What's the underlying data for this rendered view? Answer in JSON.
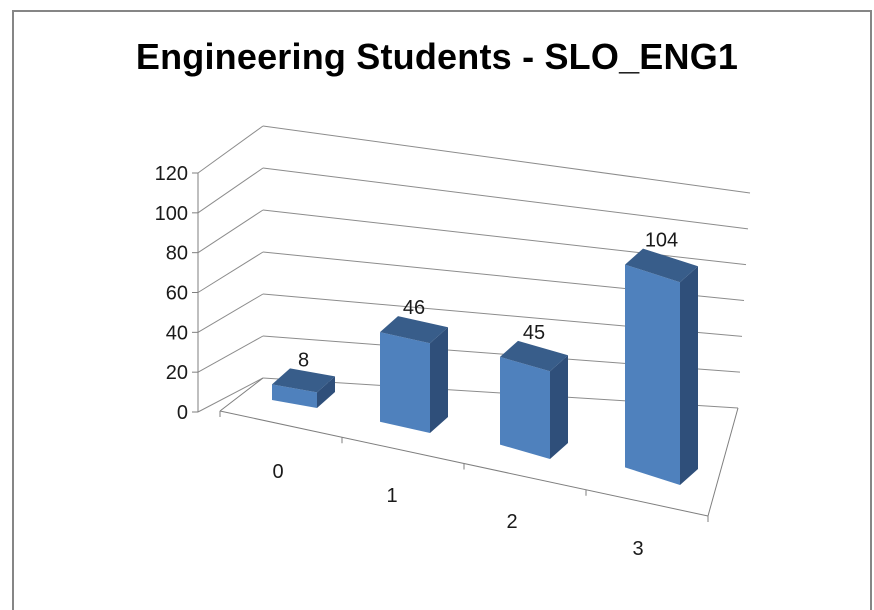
{
  "chart_data": {
    "type": "bar",
    "title": "Engineering Students - SLO_ENG1",
    "xlabel": "",
    "ylabel": "",
    "categories": [
      "0",
      "1",
      "2",
      "3"
    ],
    "values": [
      8,
      46,
      45,
      104
    ],
    "data_labels": [
      "8",
      "46",
      "45",
      "104"
    ],
    "ylim": [
      0,
      120
    ],
    "yticks": [
      0,
      20,
      40,
      60,
      80,
      100,
      120
    ],
    "ytick_labels": [
      "0",
      "20",
      "40",
      "60",
      "80",
      "100",
      "120"
    ],
    "grid": true,
    "legend": "none",
    "style": "3d-column",
    "colors": {
      "bar_front": "#4F81BD",
      "bar_top": "#385D8A",
      "bar_side": "#2F4F7A",
      "grid": "#8C8C8C",
      "axis": "#7F7F7F",
      "text": "#1A1A1A"
    }
  }
}
